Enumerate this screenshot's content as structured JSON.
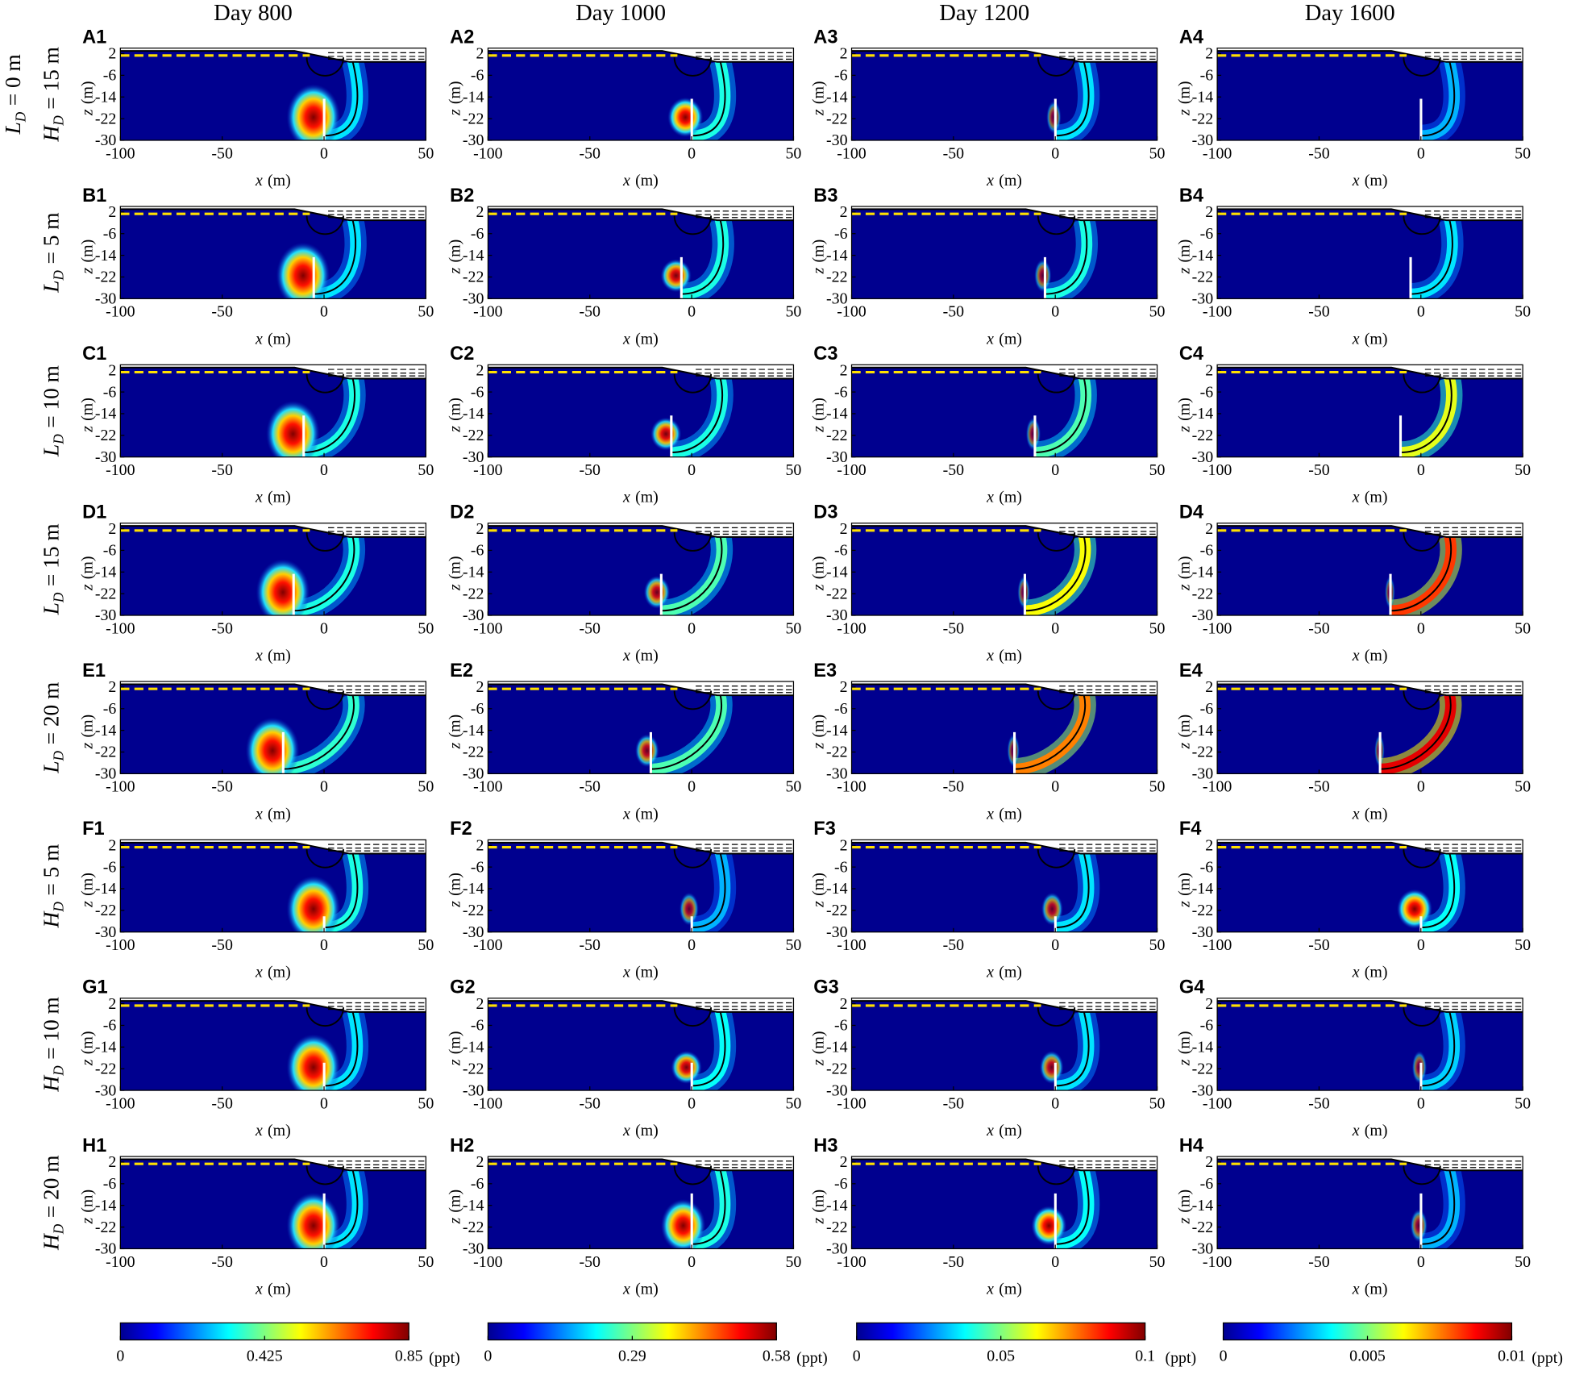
{
  "column_titles": [
    "Day 800",
    "Day 1000",
    "Day 1200",
    "Day 1600"
  ],
  "rows": [
    {
      "labels": [
        {
          "symbol": "L",
          "subscript": "D",
          "text": "= 0 m"
        },
        {
          "symbol": "H",
          "subscript": "D",
          "text": "= 15 m"
        }
      ],
      "panels": [
        "A1",
        "A2",
        "A3",
        "A4"
      ]
    },
    {
      "labels": [
        {
          "symbol": "L",
          "subscript": "D",
          "text": "= 5 m"
        }
      ],
      "panels": [
        "B1",
        "B2",
        "B3",
        "B4"
      ]
    },
    {
      "labels": [
        {
          "symbol": "L",
          "subscript": "D",
          "text": "= 10 m"
        }
      ],
      "panels": [
        "C1",
        "C2",
        "C3",
        "C4"
      ]
    },
    {
      "labels": [
        {
          "symbol": "L",
          "subscript": "D",
          "text": "= 15 m"
        }
      ],
      "panels": [
        "D1",
        "D2",
        "D3",
        "D4"
      ]
    },
    {
      "labels": [
        {
          "symbol": "L",
          "subscript": "D",
          "text": "= 20 m"
        }
      ],
      "panels": [
        "E1",
        "E2",
        "E3",
        "E4"
      ]
    },
    {
      "labels": [
        {
          "symbol": "H",
          "subscript": "D",
          "text": "= 5 m"
        }
      ],
      "panels": [
        "F1",
        "F2",
        "F3",
        "F4"
      ]
    },
    {
      "labels": [
        {
          "symbol": "H",
          "subscript": "D",
          "text": "= 10 m"
        }
      ],
      "panels": [
        "G1",
        "G2",
        "G3",
        "G4"
      ]
    },
    {
      "labels": [
        {
          "symbol": "H",
          "subscript": "D",
          "text": "= 20 m"
        }
      ],
      "panels": [
        "H1",
        "H2",
        "H3",
        "H4"
      ]
    }
  ],
  "axes": {
    "xlabel_symbol": "x",
    "xlabel_unit": "(m)",
    "ylabel_symbol": "z",
    "ylabel_unit": "(m)",
    "xticks": [
      -100,
      -50,
      0,
      50
    ],
    "yticks": [
      2,
      -6,
      -14,
      -22,
      -30
    ]
  },
  "colorbars": [
    {
      "ticks": [
        0,
        0.425,
        0.85
      ],
      "unit": "(ppt)"
    },
    {
      "ticks": [
        0,
        0.29,
        0.58
      ],
      "unit": "(ppt)"
    },
    {
      "ticks": [
        0,
        0.05,
        0.1
      ],
      "unit": "(ppt)"
    },
    {
      "ticks": [
        0,
        0.005,
        0.01
      ],
      "unit": "(ppt)"
    }
  ]
}
